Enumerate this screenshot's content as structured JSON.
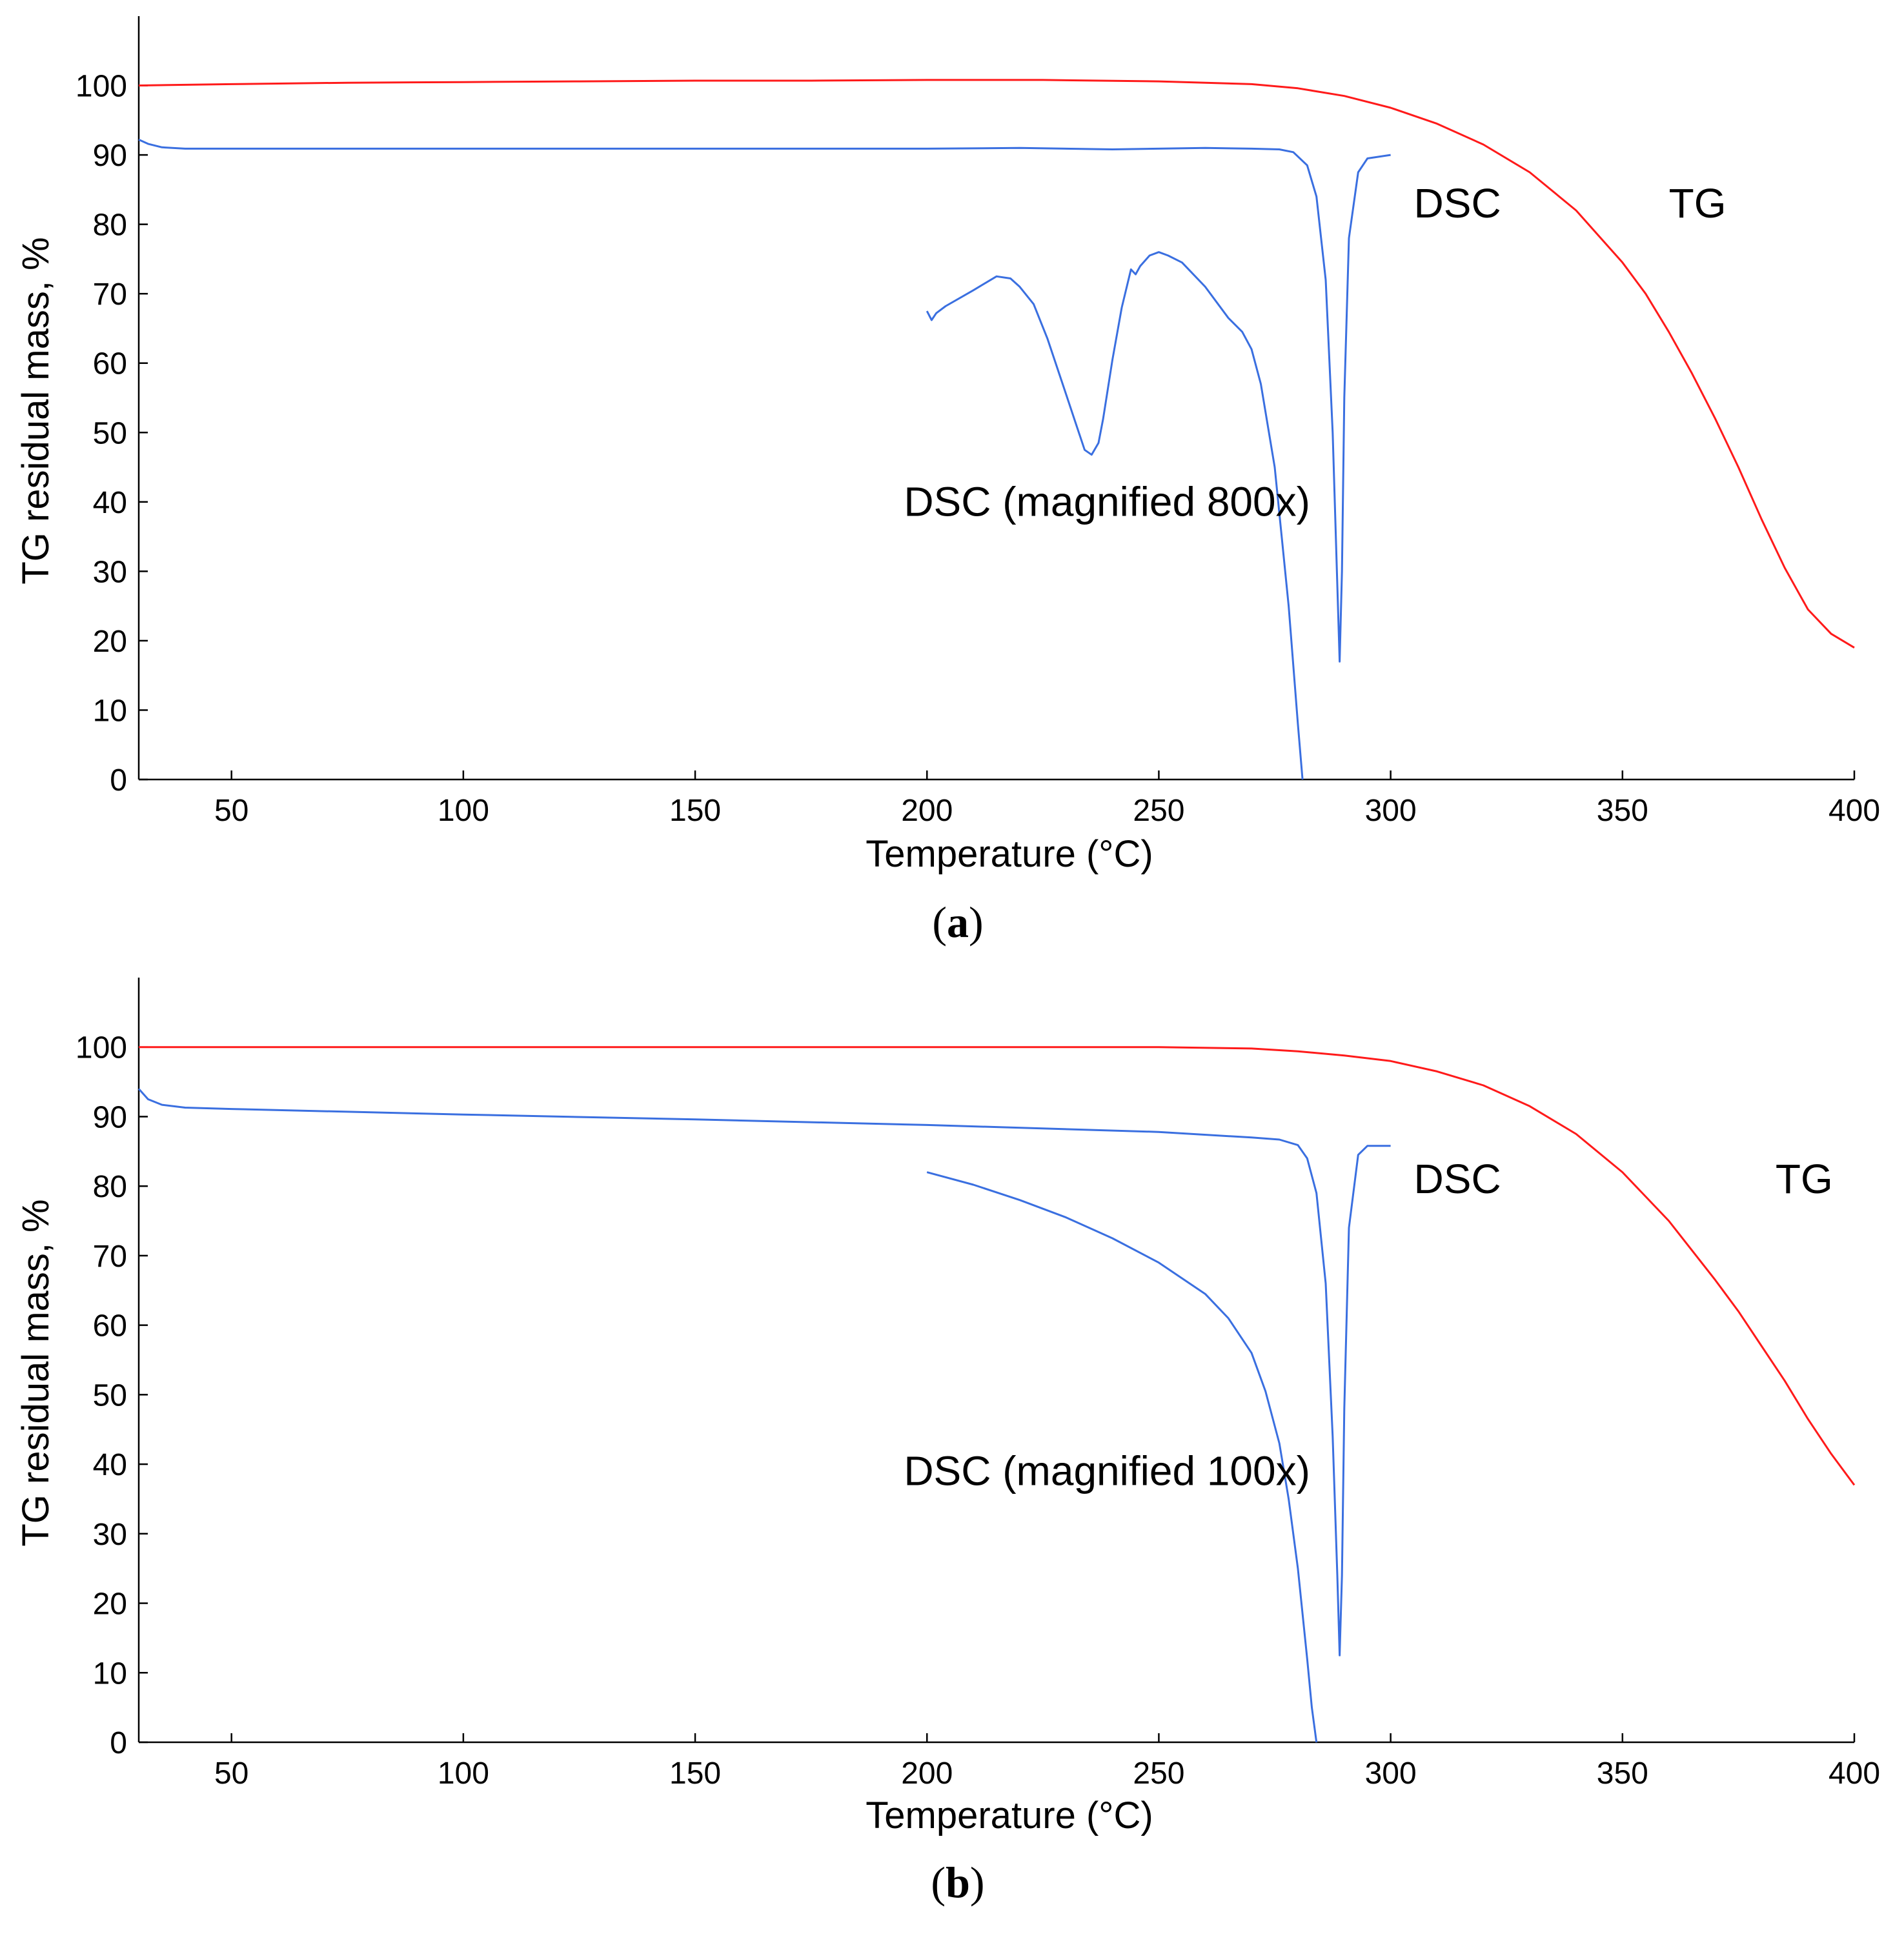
{
  "chart_data": [
    {
      "type": "line",
      "panel_label": "a",
      "xlabel": "Temperature (°C)",
      "ylabel": "TG residual mass, %",
      "xlim": [
        30,
        400
      ],
      "ylim": [
        0,
        110
      ],
      "x_ticks": [
        50,
        100,
        150,
        200,
        250,
        300,
        350,
        400
      ],
      "y_ticks": [
        0,
        10,
        20,
        30,
        40,
        50,
        60,
        70,
        80,
        90,
        100
      ],
      "grid": false,
      "annotations": [
        {
          "text": "DSC",
          "x": 305,
          "y": 81
        },
        {
          "text": "TG",
          "x": 360,
          "y": 81
        },
        {
          "text": "DSC (magnified 800x)",
          "x": 195,
          "y": 38
        }
      ],
      "series": [
        {
          "name": "TG",
          "color": "#ff1a1a",
          "x": [
            30,
            50,
            75,
            100,
            125,
            150,
            175,
            200,
            225,
            250,
            270,
            280,
            290,
            300,
            310,
            320,
            330,
            340,
            350,
            355,
            360,
            365,
            370,
            375,
            380,
            385,
            390,
            395,
            400
          ],
          "y": [
            100,
            100.2,
            100.4,
            100.5,
            100.6,
            100.7,
            100.7,
            100.8,
            100.8,
            100.6,
            100.2,
            99.6,
            98.5,
            96.8,
            94.5,
            91.5,
            87.5,
            82,
            74.5,
            70,
            64.5,
            58.5,
            52,
            45,
            37.5,
            30.5,
            24.5,
            21,
            19
          ]
        },
        {
          "name": "DSC",
          "color": "#3a6fe0",
          "x": [
            30,
            32,
            35,
            40,
            50,
            100,
            150,
            200,
            220,
            240,
            260,
            270,
            276,
            279,
            282,
            284,
            286,
            287.5,
            288.5,
            289,
            289.5,
            290,
            291,
            293,
            295,
            300
          ],
          "y": [
            92.2,
            91.6,
            91.1,
            90.9,
            90.9,
            90.9,
            90.9,
            90.9,
            91,
            90.8,
            91,
            90.9,
            90.8,
            90.4,
            88.5,
            84,
            72,
            50,
            28,
            17,
            30,
            55,
            78,
            87.5,
            89.5,
            90
          ]
        },
        {
          "name": "DSC (magnified 800x)",
          "color": "#3a6fe0",
          "x": [
            200,
            201,
            202,
            204,
            210,
            215,
            218,
            220,
            223,
            226,
            229,
            232,
            234,
            235.5,
            237,
            238,
            240,
            242,
            244,
            245,
            246,
            248,
            250,
            252,
            255,
            260,
            265,
            268,
            270,
            272,
            275,
            278,
            280,
            281
          ],
          "y": [
            67.5,
            66.2,
            67.2,
            68.2,
            70.5,
            72.5,
            72.2,
            71,
            68.5,
            63.5,
            57.5,
            51.5,
            47.5,
            46.8,
            48.5,
            52,
            60.5,
            68,
            73.5,
            72.8,
            74,
            75.5,
            76,
            75.5,
            74.5,
            71,
            66.5,
            64.5,
            62,
            57,
            45,
            25,
            8,
            0
          ]
        }
      ]
    },
    {
      "type": "line",
      "panel_label": "b",
      "xlabel": "Temperature (°C)",
      "ylabel": "TG residual mass, %",
      "xlim": [
        30,
        400
      ],
      "ylim": [
        0,
        110
      ],
      "x_ticks": [
        50,
        100,
        150,
        200,
        250,
        300,
        350,
        400
      ],
      "y_ticks": [
        0,
        10,
        20,
        30,
        40,
        50,
        60,
        70,
        80,
        90,
        100
      ],
      "grid": false,
      "annotations": [
        {
          "text": "DSC",
          "x": 305,
          "y": 79
        },
        {
          "text": "TG",
          "x": 383,
          "y": 79
        },
        {
          "text": "DSC (magnified 100x)",
          "x": 195,
          "y": 37
        }
      ],
      "series": [
        {
          "name": "TG",
          "color": "#ff1a1a",
          "x": [
            30,
            50,
            75,
            100,
            125,
            150,
            175,
            200,
            225,
            250,
            270,
            280,
            290,
            300,
            310,
            320,
            330,
            340,
            350,
            360,
            370,
            375,
            380,
            385,
            390,
            395,
            400
          ],
          "y": [
            100,
            100,
            100,
            100,
            100,
            100,
            100,
            100,
            100,
            100,
            99.8,
            99.4,
            98.8,
            98,
            96.5,
            94.5,
            91.5,
            87.5,
            82,
            75,
            66.5,
            62,
            57,
            52,
            46.5,
            41.5,
            37
          ]
        },
        {
          "name": "DSC",
          "color": "#3a6fe0",
          "x": [
            30,
            32,
            35,
            40,
            50,
            100,
            150,
            200,
            250,
            270,
            276,
            280,
            282,
            284,
            286,
            287.5,
            288.5,
            289,
            289.5,
            290,
            291,
            293,
            295,
            300
          ],
          "y": [
            94,
            92.5,
            91.7,
            91.3,
            91.1,
            90.3,
            89.6,
            88.8,
            87.8,
            87,
            86.7,
            85.9,
            84,
            79,
            66,
            44,
            24,
            12.5,
            24,
            48,
            74,
            84.5,
            85.8,
            85.8
          ]
        },
        {
          "name": "DSC (magnified 100x)",
          "color": "#3a6fe0",
          "x": [
            200,
            210,
            220,
            230,
            240,
            250,
            260,
            265,
            270,
            273,
            276,
            278,
            280,
            282,
            283,
            284
          ],
          "y": [
            82,
            80.2,
            78,
            75.5,
            72.5,
            69,
            64.5,
            61,
            56,
            50.5,
            43,
            35,
            25,
            12,
            5,
            0
          ]
        }
      ]
    }
  ]
}
